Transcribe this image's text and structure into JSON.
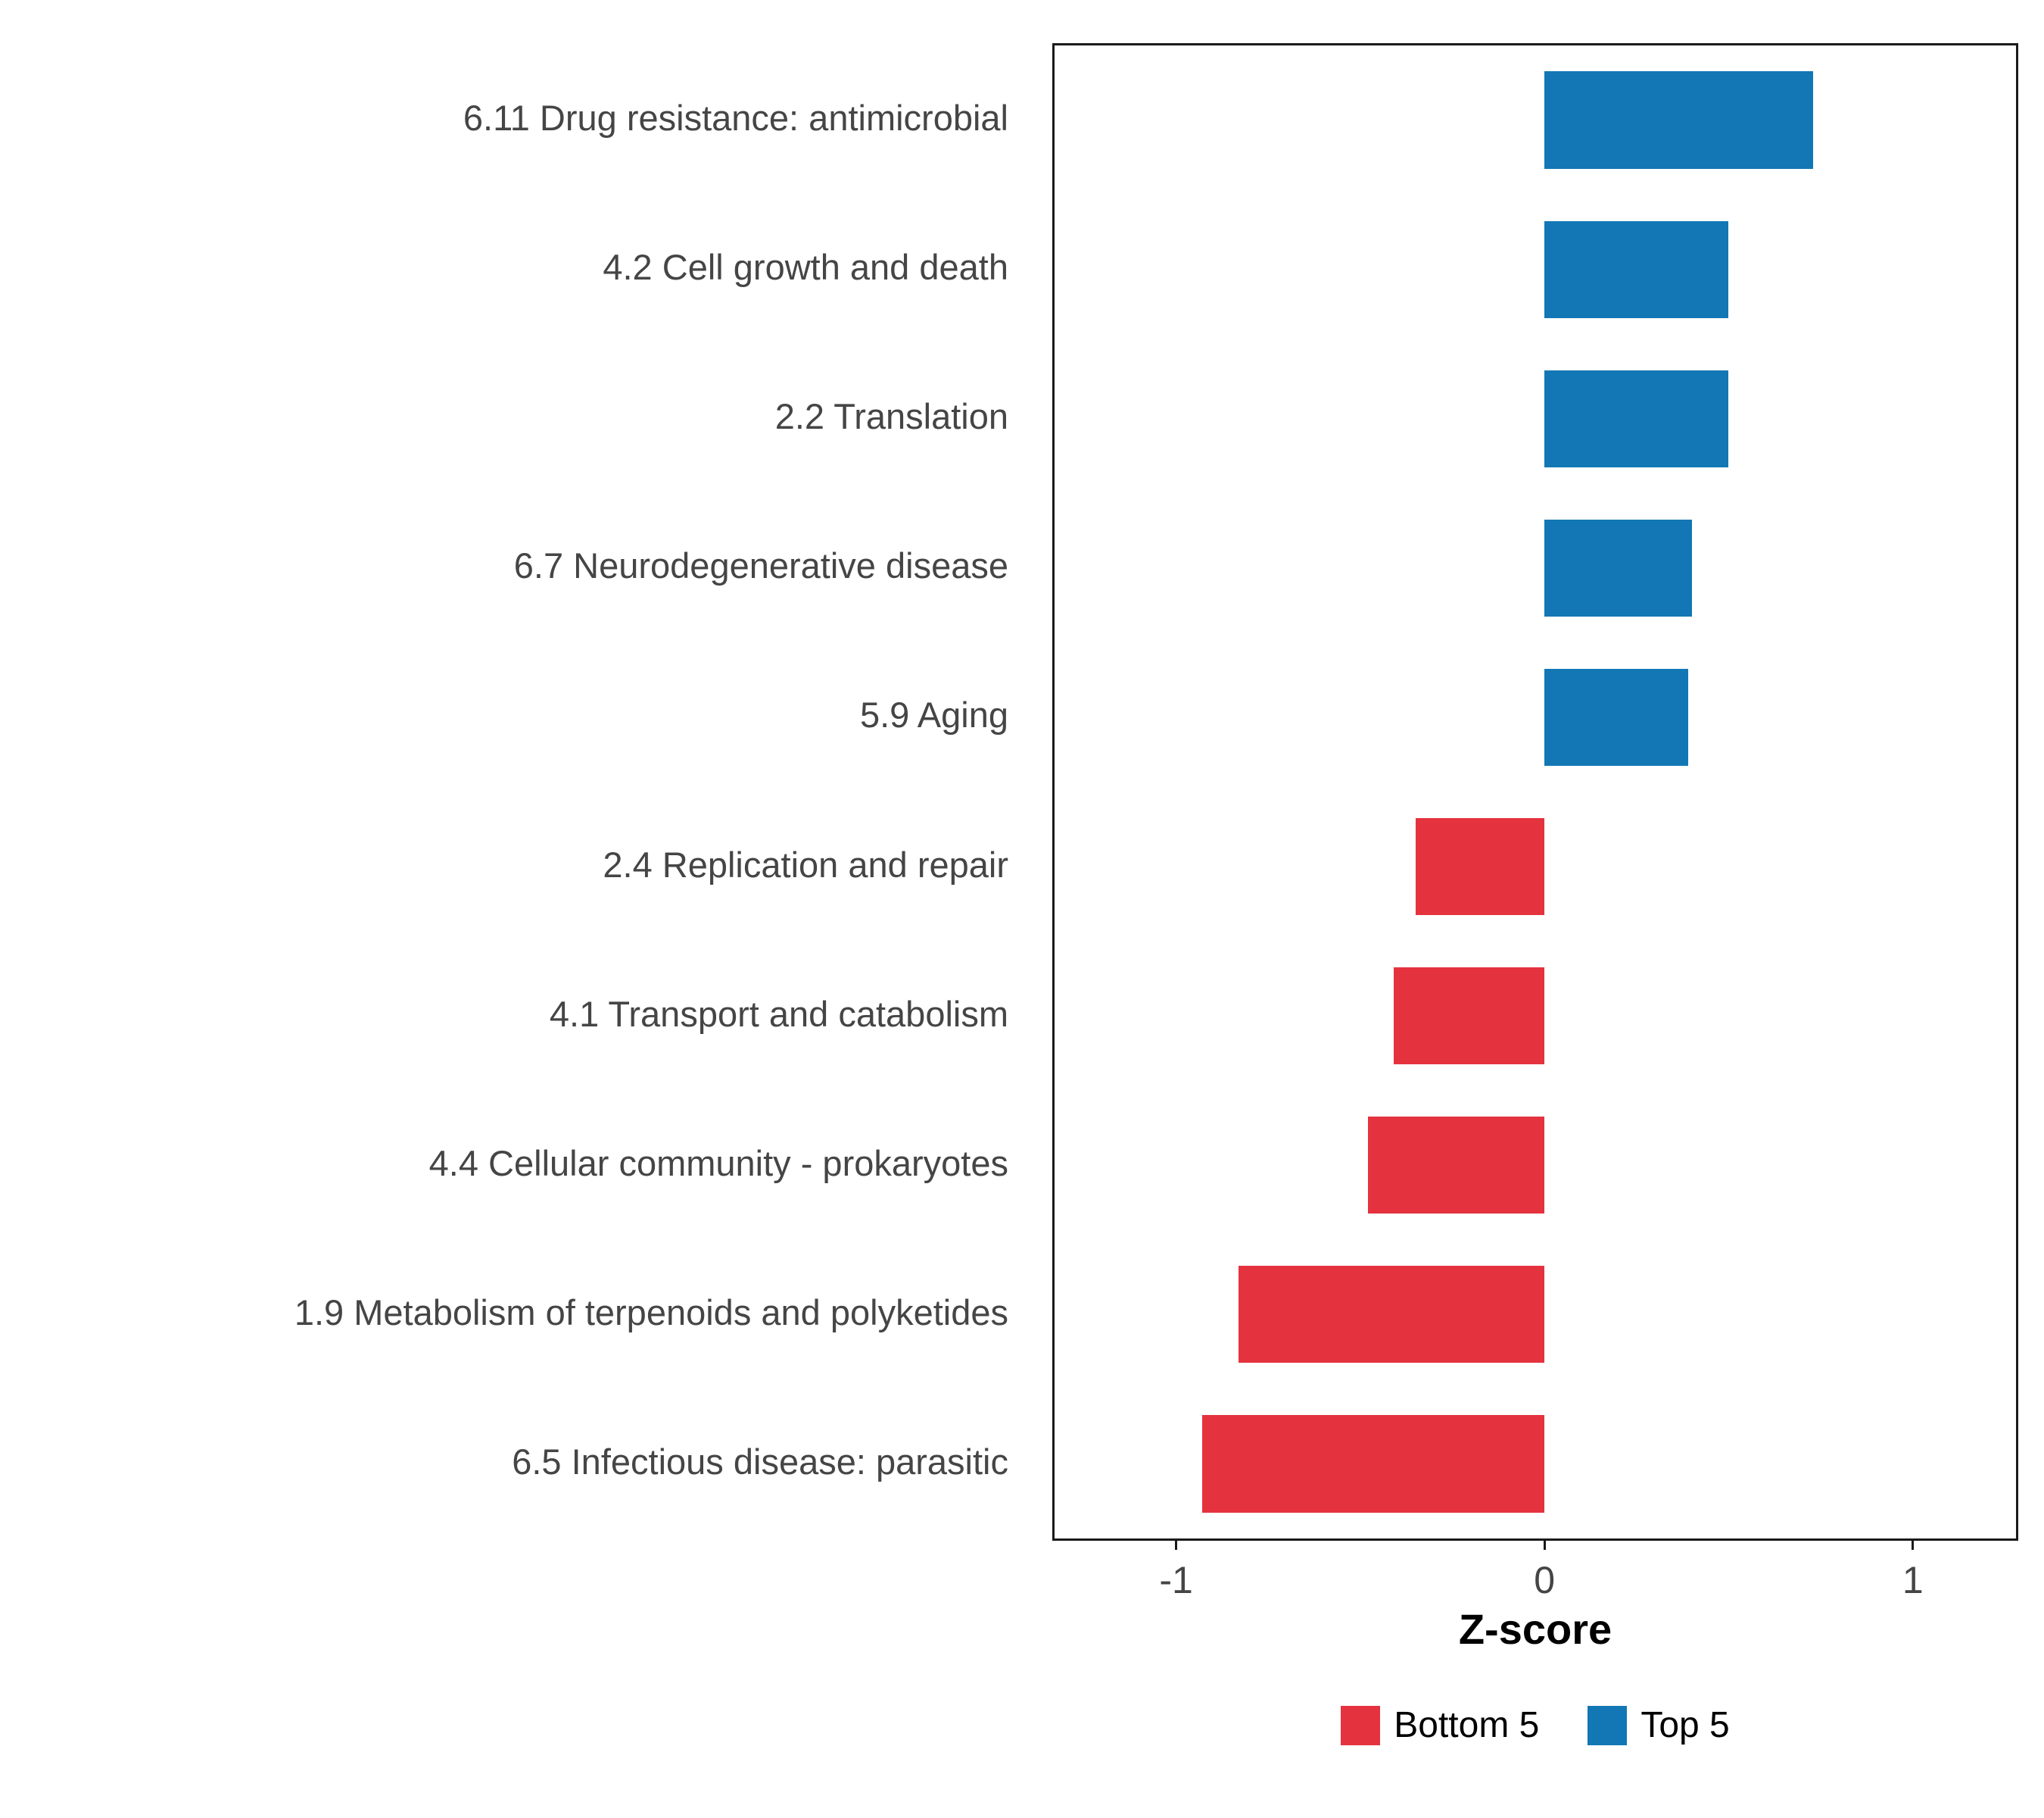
{
  "figure": {
    "background_color": "#FFFFFF"
  },
  "chart_data": {
    "type": "bar",
    "orientation": "horizontal",
    "title": "",
    "xlabel": "Z-score",
    "ylabel": "",
    "categories": [
      "6.11 Drug resistance: antimicrobial",
      "4.2 Cell growth and death",
      "2.2 Translation",
      "6.7 Neurodegenerative disease",
      "5.9 Aging",
      "2.4 Replication and repair",
      "4.1 Transport and catabolism",
      "4.4 Cellular community - prokaryotes",
      "1.9 Metabolism of terpenoids and polyketides",
      "6.5 Infectious disease: parasitic"
    ],
    "values": [
      0.73,
      0.5,
      0.5,
      0.4,
      0.39,
      -0.35,
      -0.41,
      -0.48,
      -0.83,
      -0.93
    ],
    "groups": [
      "Top 5",
      "Top 5",
      "Top 5",
      "Top 5",
      "Top 5",
      "Bottom 5",
      "Bottom 5",
      "Bottom 5",
      "Bottom 5",
      "Bottom 5"
    ],
    "x_ticks": [
      -1,
      0,
      1
    ],
    "x_tick_labels": [
      "-1",
      "0",
      "1"
    ],
    "xlim": [
      -1.33,
      1.28
    ],
    "grid": "off",
    "bar_relative_height": 0.65,
    "colors": {
      "Bottom 5": "#E4333F",
      "Top 5": "#1277B4"
    },
    "legend": {
      "position": "bottom",
      "items": [
        {
          "label": "Bottom 5",
          "color": "#E4333F"
        },
        {
          "label": "Top 5",
          "color": "#1277B4"
        }
      ]
    },
    "style": {
      "axis_text_color": "#454545",
      "panel_border_color": "#1A1A1A",
      "x_title_color": "#000000"
    }
  }
}
